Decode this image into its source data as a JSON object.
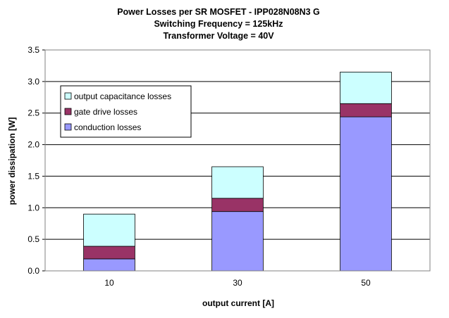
{
  "chart_data": {
    "type": "bar",
    "stacked": true,
    "title_lines": [
      "Power Losses per SR MOSFET - IPP028N08N3 G",
      "Switching Frequency  = 125kHz",
      "Transformer Voltage = 40V"
    ],
    "xlabel": "output current [A]",
    "ylabel": "power dissipation [W]",
    "categories": [
      "10",
      "30",
      "50"
    ],
    "ylim": [
      0,
      3.5
    ],
    "yticks": [
      "0.0",
      "0.5",
      "1.0",
      "1.5",
      "2.0",
      "2.5",
      "3.0",
      "3.5"
    ],
    "grid": true,
    "legend_position": "top-left",
    "series": [
      {
        "name": "conduction losses",
        "color": "#9999ff",
        "values": [
          0.19,
          0.94,
          2.44
        ]
      },
      {
        "name": "gate drive losses",
        "color": "#993366",
        "values": [
          0.2,
          0.21,
          0.21
        ]
      },
      {
        "name": "output capacitance losses",
        "color": "#ccffff",
        "values": [
          0.51,
          0.5,
          0.5
        ]
      }
    ],
    "legend_order": [
      2,
      1,
      0
    ]
  }
}
